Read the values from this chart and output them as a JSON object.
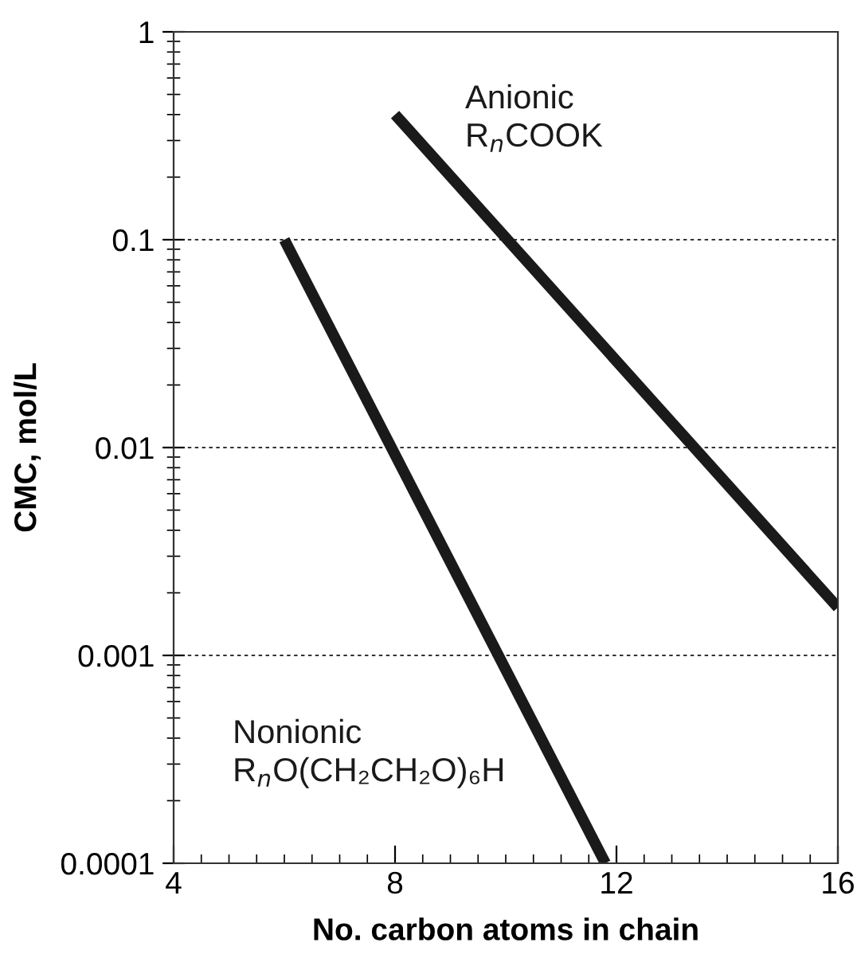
{
  "chart_data": {
    "type": "line",
    "xlabel": "No. carbon atoms in chain",
    "ylabel": "CMC, mol/L",
    "log": "y",
    "xlim": [
      4,
      16
    ],
    "xticks": [
      4,
      8,
      12,
      16
    ],
    "ylim": [
      0.0001,
      1
    ],
    "yticks": [
      {
        "value": 0.0001,
        "label": "0.0001"
      },
      {
        "value": 0.001,
        "label": "0.001"
      },
      {
        "value": 0.01,
        "label": "0.01"
      },
      {
        "value": 0.1,
        "label": "0.1"
      },
      {
        "value": 1,
        "label": "1"
      }
    ],
    "grid": "y",
    "line_style": "solid",
    "marker": "none",
    "series": [
      {
        "name": "Anionic\nR$_{n}$COOK",
        "color": "#1a1a1a",
        "x": [
          8,
          16
        ],
        "values": [
          0.4,
          0.0017
        ]
      },
      {
        "name": "Nonionic\nR$_{n}$O(CH₂CH₂O)₆H",
        "color": "#1a1a1a",
        "x": [
          6,
          11.8
        ],
        "values": [
          0.1,
          0.0001
        ]
      }
    ]
  }
}
